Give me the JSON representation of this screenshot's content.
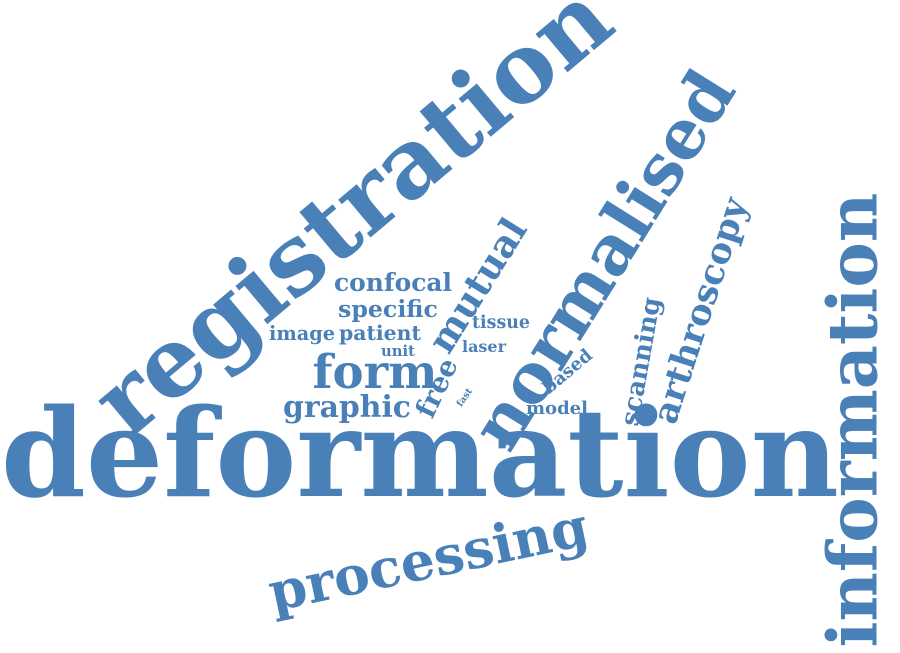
{
  "style": {
    "word_color": "#4a80b8",
    "background": "#ffffff"
  },
  "words": {
    "deformation": "deformation",
    "registration": "registration",
    "normalised": "normalised",
    "information": "information",
    "processing": "processing",
    "arthroscopy": "arthroscopy",
    "form": "form",
    "graphic": "graphic",
    "mutual": "mutual",
    "free": "free",
    "confocal": "confocal",
    "specific": "specific",
    "image": "image",
    "patient": "patient",
    "scanning": "scanning",
    "tissue": "tissue",
    "unit": "unit",
    "laser": "laser",
    "based": "based",
    "model": "model",
    "fast": "fast"
  }
}
